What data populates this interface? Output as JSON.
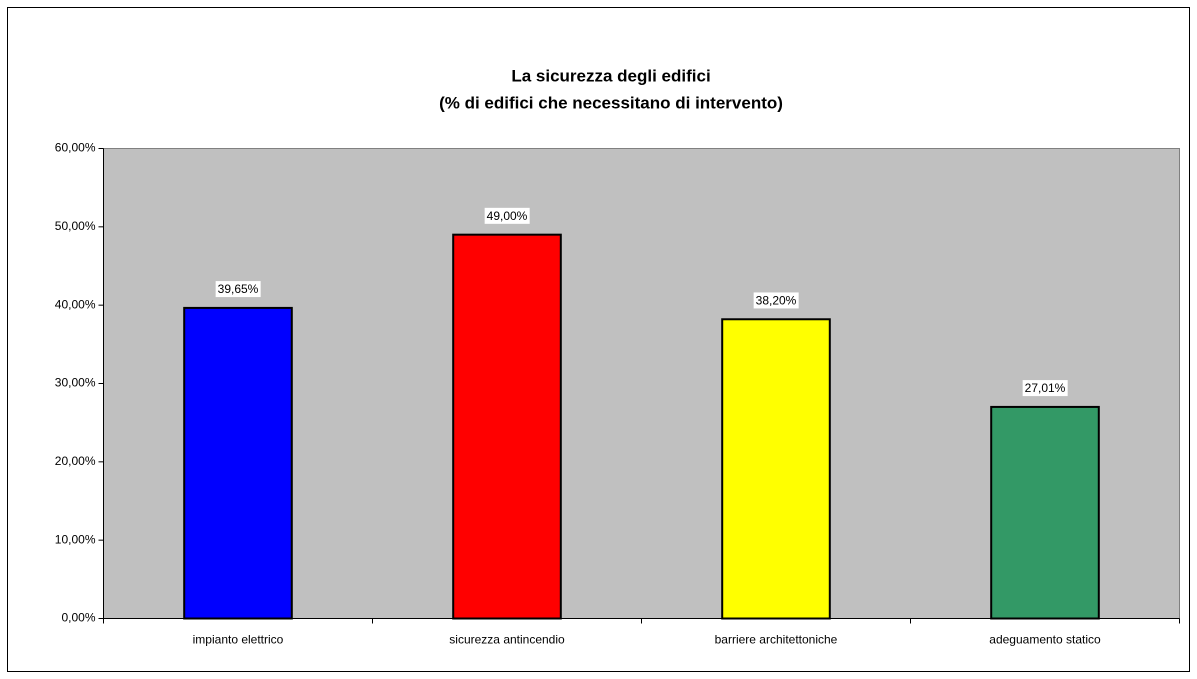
{
  "chart_data": {
    "type": "bar",
    "title": "La sicurezza degli edifici",
    "subtitle": "(% di edifici che necessitano di intervento)",
    "categories": [
      "impianto elettrico",
      "sicurezza antincendio",
      "barriere architettoniche",
      "adeguamento statico"
    ],
    "values": [
      39.65,
      49.0,
      38.2,
      27.01
    ],
    "value_labels": [
      "39,65%",
      "49,00%",
      "38,20%",
      "27,01%"
    ],
    "colors": [
      "#0000ff",
      "#ff0000",
      "#ffff00",
      "#339966"
    ],
    "ylim": [
      0,
      60
    ],
    "yticks": [
      {
        "value": 0,
        "label": "0,00%"
      },
      {
        "value": 10,
        "label": "10,00%"
      },
      {
        "value": 20,
        "label": "20,00%"
      },
      {
        "value": 30,
        "label": "30,00%"
      },
      {
        "value": 40,
        "label": "40,00%"
      },
      {
        "value": 50,
        "label": "50,00%"
      },
      {
        "value": 60,
        "label": "60,00%"
      }
    ],
    "grid": false
  }
}
